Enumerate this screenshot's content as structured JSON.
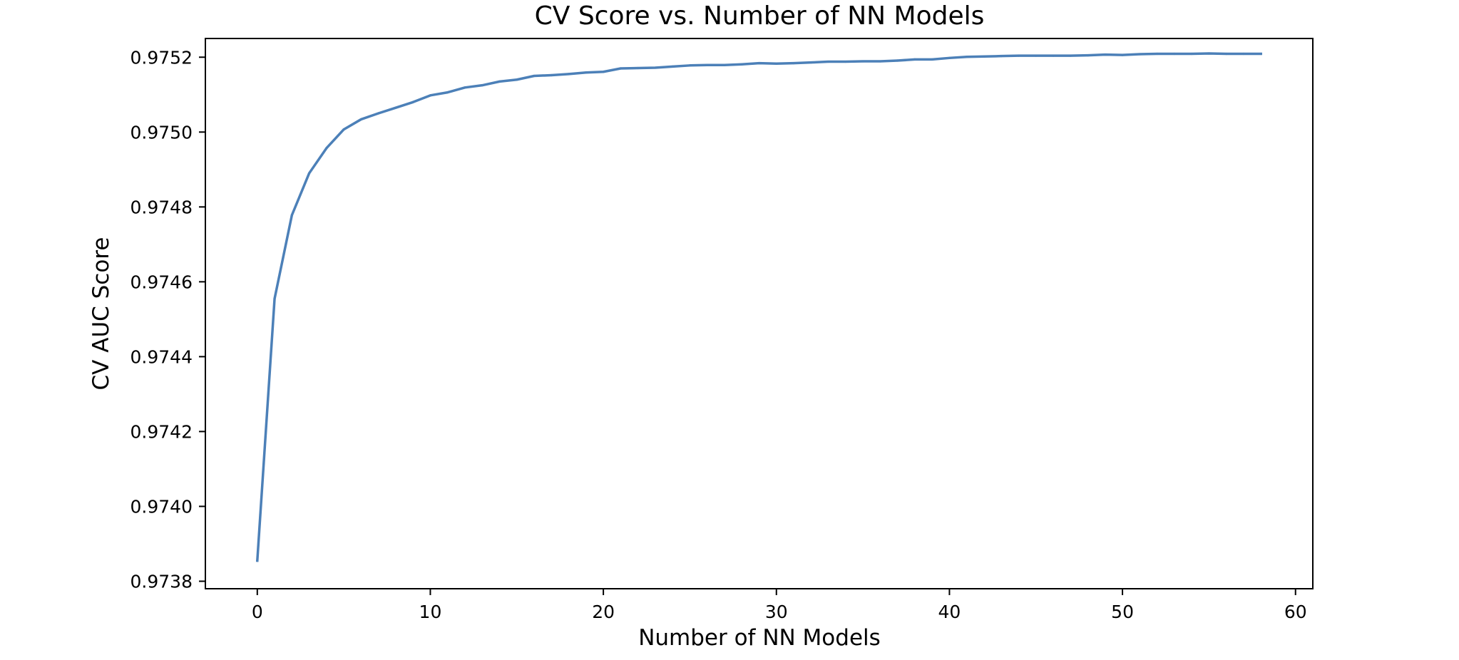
{
  "chart_data": {
    "type": "line",
    "title": "CV Score vs. Number of NN Models",
    "xlabel": "Number of NN Models",
    "ylabel": "CV AUC Score",
    "xlim": [
      -3,
      61
    ],
    "ylim": [
      0.97378,
      0.97525
    ],
    "xticks": [
      0,
      10,
      20,
      30,
      40,
      50,
      60
    ],
    "xtick_labels": [
      "0",
      "10",
      "20",
      "30",
      "40",
      "50",
      "60"
    ],
    "yticks": [
      0.9738,
      0.974,
      0.9742,
      0.9744,
      0.9746,
      0.9748,
      0.975,
      0.9752
    ],
    "ytick_labels": [
      "0.9738",
      "0.9740",
      "0.9742",
      "0.9744",
      "0.9746",
      "0.9748",
      "0.9750",
      "0.9752"
    ],
    "grid": false,
    "series": [
      {
        "color": "#4c80b8",
        "x": [
          0,
          1,
          2,
          3,
          4,
          5,
          6,
          7,
          8,
          9,
          10,
          11,
          12,
          13,
          14,
          15,
          16,
          17,
          18,
          19,
          20,
          21,
          22,
          23,
          24,
          25,
          26,
          27,
          28,
          29,
          30,
          31,
          32,
          33,
          34,
          35,
          36,
          37,
          38,
          39,
          40,
          41,
          42,
          43,
          44,
          45,
          46,
          47,
          48,
          49,
          50,
          51,
          52,
          53,
          54,
          55,
          56,
          57,
          58
        ],
        "y": [
          0.973855,
          0.974555,
          0.974778,
          0.97489,
          0.974957,
          0.975007,
          0.975034,
          0.97505,
          0.975065,
          0.97508,
          0.975098,
          0.975106,
          0.975119,
          0.975125,
          0.975135,
          0.97514,
          0.97515,
          0.975152,
          0.975155,
          0.975159,
          0.975161,
          0.97517,
          0.975171,
          0.975172,
          0.975175,
          0.975178,
          0.975179,
          0.975179,
          0.975181,
          0.975184,
          0.975183,
          0.975184,
          0.975186,
          0.975188,
          0.975188,
          0.975189,
          0.975189,
          0.975191,
          0.975194,
          0.975194,
          0.975198,
          0.975201,
          0.975202,
          0.975203,
          0.975204,
          0.975204,
          0.975204,
          0.975204,
          0.975205,
          0.975207,
          0.975206,
          0.975208,
          0.975209,
          0.975209,
          0.975209,
          0.97521,
          0.975209,
          0.975209,
          0.975209
        ]
      }
    ]
  }
}
